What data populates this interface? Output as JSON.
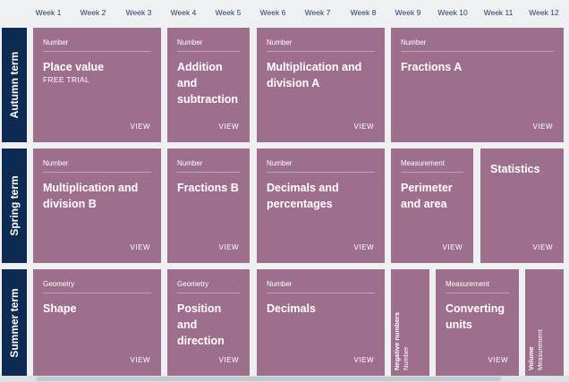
{
  "weeks": [
    "Week 1",
    "Week 2",
    "Week 3",
    "Week 4",
    "Week 5",
    "Week 6",
    "Week 7",
    "Week 8",
    "Week 9",
    "Week 10",
    "Week 11",
    "Week 12"
  ],
  "terms": {
    "autumn": "Autumn term",
    "spring": "Spring term",
    "summer": "Summer term"
  },
  "view_label": "VIEW",
  "cards": {
    "autumn": [
      {
        "category": "Number",
        "title": "Place value",
        "subtitle": "FREE TRIAL"
      },
      {
        "category": "Number",
        "title": "Addition and subtraction"
      },
      {
        "category": "Number",
        "title": "Multiplication and division A"
      },
      {
        "category": "Number",
        "title": "Fractions A"
      }
    ],
    "spring": [
      {
        "category": "Number",
        "title": "Multiplication and division B"
      },
      {
        "category": "Number",
        "title": "Fractions B"
      },
      {
        "category": "Number",
        "title": "Decimals and percentages"
      },
      {
        "category": "Measurement",
        "title": "Perimeter and area"
      },
      {
        "title": "Statistics"
      }
    ],
    "summer": [
      {
        "category": "Geometry",
        "title": "Shape"
      },
      {
        "category": "Geometry",
        "title": "Position and direction"
      },
      {
        "category": "Number",
        "title": "Decimals"
      },
      {
        "category": "Number",
        "title": "Negative numbers"
      },
      {
        "category": "Measurement",
        "title": "Converting units"
      },
      {
        "category": "Measurement",
        "title": "Volume"
      }
    ]
  },
  "colors": {
    "card": "#9e6f8c",
    "term": "#0d2b52",
    "week_text": "#1f3a5f",
    "background": "#eef0f2"
  }
}
